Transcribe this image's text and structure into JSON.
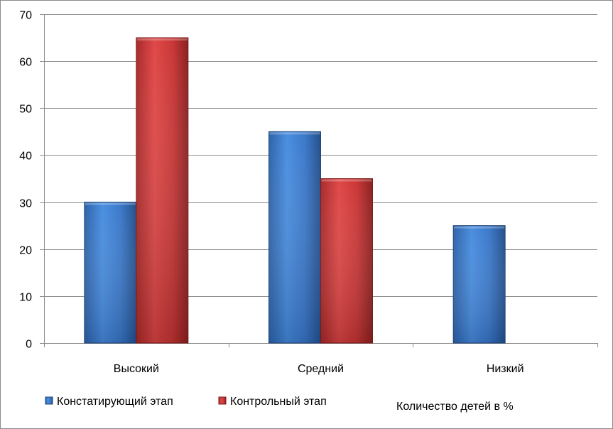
{
  "chart_data": {
    "type": "bar",
    "categories": [
      "Высокий",
      "Средний",
      "Низкий"
    ],
    "series": [
      {
        "name": "Констатирующий этап",
        "values": [
          30,
          45,
          25
        ],
        "color": "#3d7fd2"
      },
      {
        "name": "Контрольный этап",
        "values": [
          65,
          35,
          0
        ],
        "color": "#d63c3c"
      }
    ],
    "ylim": [
      0,
      70
    ],
    "yticks": [
      0,
      10,
      20,
      30,
      40,
      50,
      60,
      70
    ],
    "grid": true,
    "legend_position": "bottom-left",
    "annotation": "Количество детей в %"
  }
}
